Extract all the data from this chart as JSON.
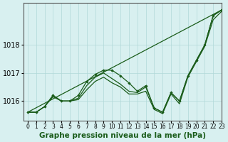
{
  "xlabel": "Graphe pression niveau de la mer (hPa)",
  "ylabel": "",
  "bg_color": "#d8f0f0",
  "grid_color": "#b0d8d8",
  "line_color": "#1a5c1a",
  "marker_color": "#1a5c1a",
  "xlim": [
    -0.5,
    23
  ],
  "ylim": [
    1015.3,
    1019.5
  ],
  "yticks": [
    1016,
    1017,
    1018
  ],
  "xticks": [
    0,
    1,
    2,
    3,
    4,
    5,
    6,
    7,
    8,
    9,
    10,
    11,
    12,
    13,
    14,
    15,
    16,
    17,
    18,
    19,
    20,
    21,
    22,
    23
  ],
  "series": [
    {
      "x": [
        0,
        1,
        2,
        3,
        4,
        5,
        6,
        7,
        8,
        9,
        10,
        11,
        12,
        13,
        14,
        15,
        16,
        17,
        18,
        19,
        20,
        21,
        22,
        23
      ],
      "y": [
        1015.6,
        1015.6,
        1015.8,
        1016.2,
        1016.0,
        1016.0,
        1016.2,
        1016.7,
        1016.95,
        1017.1,
        1017.1,
        1016.9,
        1016.65,
        1016.35,
        1016.55,
        1015.75,
        1015.6,
        1016.3,
        1016.0,
        1016.9,
        1017.45,
        1018.0,
        1019.05,
        1019.25
      ],
      "marker": true,
      "lw": 0.9
    },
    {
      "x": [
        0,
        1,
        2,
        3,
        4,
        5,
        6,
        7,
        8,
        9,
        10,
        11,
        12,
        13,
        14,
        15,
        16,
        17,
        18,
        19,
        20,
        21,
        22,
        23
      ],
      "y": [
        1015.6,
        1015.6,
        1015.8,
        1016.2,
        1016.0,
        1016.0,
        1016.1,
        1016.55,
        1016.85,
        1017.0,
        1016.8,
        1016.6,
        1016.35,
        1016.3,
        1016.5,
        1015.75,
        1015.6,
        1016.3,
        1016.0,
        1016.9,
        1017.45,
        1018.0,
        1019.05,
        1019.25
      ],
      "marker": false,
      "lw": 0.9
    },
    {
      "x": [
        0,
        23
      ],
      "y": [
        1015.6,
        1019.25
      ],
      "marker": false,
      "lw": 0.9
    },
    {
      "x": [
        0,
        1,
        2,
        3,
        4,
        5,
        6,
        7,
        8,
        9,
        10,
        11,
        12,
        13,
        14,
        15,
        16,
        17,
        18,
        19,
        20,
        21,
        22,
        23
      ],
      "y": [
        1015.6,
        1015.6,
        1015.8,
        1016.15,
        1016.0,
        1016.0,
        1016.05,
        1016.4,
        1016.7,
        1016.85,
        1016.65,
        1016.5,
        1016.25,
        1016.25,
        1016.35,
        1015.7,
        1015.55,
        1016.25,
        1015.9,
        1016.85,
        1017.4,
        1017.95,
        1018.9,
        1019.2
      ],
      "marker": false,
      "lw": 0.9
    }
  ],
  "font_size_xlabel": 7.5,
  "font_size_yticks": 7,
  "font_size_xticks": 5.5
}
